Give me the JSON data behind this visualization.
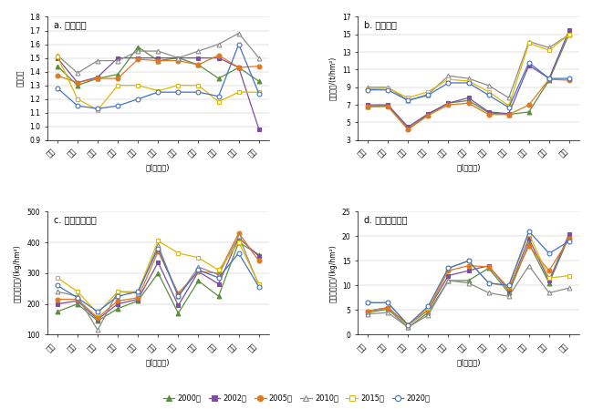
{
  "provinces": [
    "云南",
    "四川",
    "贵州",
    "重庆",
    "湖南",
    "湖北",
    "江西",
    "安徽",
    "浙江",
    "江苏",
    "上海"
  ],
  "xlabel": "省(直辖市)",
  "panel_a": {
    "title": "a. 复种指数",
    "ylabel": "复种指数",
    "ylim": [
      0.9,
      1.8
    ],
    "yticks": [
      0.9,
      1.0,
      1.1,
      1.2,
      1.3,
      1.4,
      1.5,
      1.6,
      1.7,
      1.8
    ],
    "series": {
      "2000": [
        1.44,
        1.3,
        1.35,
        1.38,
        1.58,
        1.48,
        1.5,
        1.45,
        1.35,
        1.43,
        1.33
      ],
      "2002": [
        1.5,
        1.32,
        1.36,
        1.5,
        1.5,
        1.5,
        1.5,
        1.5,
        1.5,
        1.43,
        0.98
      ],
      "2005": [
        1.37,
        1.32,
        1.35,
        1.35,
        1.49,
        1.48,
        1.48,
        1.45,
        1.52,
        1.43,
        1.44
      ],
      "2010": [
        1.52,
        1.39,
        1.48,
        1.48,
        1.55,
        1.55,
        1.5,
        1.55,
        1.6,
        1.68,
        1.5
      ],
      "2015": [
        1.51,
        1.2,
        1.12,
        1.3,
        1.3,
        1.26,
        1.3,
        1.3,
        1.18,
        1.25,
        1.25
      ],
      "2020": [
        1.28,
        1.15,
        1.13,
        1.15,
        1.2,
        1.25,
        1.25,
        1.25,
        1.22,
        1.6,
        1.24
      ]
    }
  },
  "panel_b": {
    "title": "b. 产出密度",
    "ylabel": "产出强度/(t/hm²)",
    "ylim": [
      3,
      17
    ],
    "yticks": [
      3,
      5,
      7,
      9,
      11,
      13,
      15,
      17
    ],
    "series": {
      "2000": [
        6.8,
        6.9,
        4.3,
        5.9,
        7.2,
        7.5,
        6.1,
        5.9,
        6.2,
        9.8,
        15.1
      ],
      "2002": [
        7.0,
        7.0,
        4.5,
        6.0,
        7.2,
        7.8,
        6.2,
        6.0,
        11.5,
        10.0,
        15.5
      ],
      "2005": [
        6.8,
        6.8,
        4.2,
        5.8,
        7.0,
        7.2,
        5.9,
        5.9,
        7.0,
        9.9,
        9.8
      ],
      "2010": [
        9.0,
        9.0,
        7.5,
        8.2,
        10.3,
        10.0,
        9.2,
        7.8,
        14.2,
        13.5,
        15.0
      ],
      "2015": [
        8.8,
        8.9,
        7.8,
        8.5,
        9.9,
        9.7,
        8.5,
        6.9,
        14.0,
        13.2,
        15.0
      ],
      "2020": [
        8.7,
        8.7,
        7.5,
        8.1,
        9.5,
        9.5,
        8.1,
        6.7,
        11.8,
        10.0,
        10.0
      ]
    }
  },
  "panel_c": {
    "title": "c. 化肥使用强度",
    "ylabel": "化肥使用强度/(kg/hm²)",
    "ylim": [
      100,
      500
    ],
    "yticks": [
      100,
      200,
      300,
      400,
      500
    ],
    "series": {
      "2000": [
        175,
        200,
        145,
        185,
        210,
        300,
        170,
        275,
        225,
        400,
        360
      ],
      "2002": [
        200,
        210,
        150,
        200,
        215,
        335,
        195,
        305,
        265,
        415,
        355
      ],
      "2005": [
        215,
        215,
        155,
        210,
        220,
        370,
        235,
        305,
        300,
        430,
        340
      ],
      "2010": [
        240,
        225,
        115,
        240,
        235,
        390,
        225,
        320,
        295,
        420,
        260
      ],
      "2015": [
        285,
        240,
        170,
        240,
        240,
        405,
        365,
        350,
        310,
        400,
        265
      ],
      "2020": [
        260,
        220,
        175,
        225,
        240,
        380,
        225,
        310,
        285,
        365,
        255
      ]
    }
  },
  "panel_d": {
    "title": "d. 农药使用强度",
    "ylabel": "农药使用强度/(kg/hm²)",
    "ylim": [
      0,
      25
    ],
    "yticks": [
      0,
      5,
      10,
      15,
      20,
      25
    ],
    "series": {
      "2000": [
        4.5,
        5.2,
        1.5,
        4.5,
        11.0,
        11.0,
        13.5,
        8.5,
        18.5,
        10.5,
        20.0
      ],
      "2002": [
        4.8,
        5.5,
        2.0,
        5.0,
        12.0,
        13.0,
        14.0,
        9.0,
        19.5,
        11.0,
        20.5
      ],
      "2005": [
        4.8,
        5.5,
        2.0,
        5.0,
        13.0,
        14.0,
        13.8,
        9.5,
        18.0,
        13.0,
        19.5
      ],
      "2010": [
        4.2,
        4.5,
        1.5,
        4.0,
        11.0,
        10.5,
        8.5,
        7.8,
        14.0,
        8.5,
        9.5
      ],
      "2015": [
        6.5,
        6.5,
        2.0,
        5.5,
        13.5,
        15.0,
        10.5,
        9.8,
        20.5,
        11.5,
        12.0
      ],
      "2020": [
        6.5,
        6.5,
        2.0,
        5.8,
        13.5,
        15.0,
        10.5,
        10.0,
        21.0,
        16.5,
        19.0
      ]
    }
  },
  "series_styles": {
    "2000": {
      "color": "#5B8E3E",
      "marker": "^",
      "filled": true
    },
    "2002": {
      "color": "#7B4F9E",
      "marker": "s",
      "filled": true
    },
    "2005": {
      "color": "#E07820",
      "marker": "o",
      "filled": true
    },
    "2010": {
      "color": "#8C8C8C",
      "marker": "^",
      "filled": false
    },
    "2015": {
      "color": "#E0B800",
      "marker": "s",
      "filled": false
    },
    "2020": {
      "color": "#4472C4",
      "marker": "o",
      "filled": false
    }
  },
  "legend_labels": [
    "2000年",
    "2002年",
    "2005年",
    "2010年",
    "2015年",
    "2020年"
  ]
}
